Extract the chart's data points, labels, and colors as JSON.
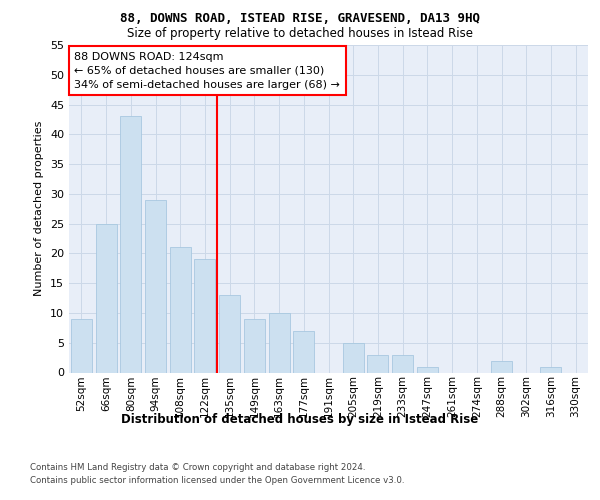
{
  "title": "88, DOWNS ROAD, ISTEAD RISE, GRAVESEND, DA13 9HQ",
  "subtitle": "Size of property relative to detached houses in Istead Rise",
  "xlabel_bottom": "Distribution of detached houses by size in Istead Rise",
  "ylabel": "Number of detached properties",
  "categories": [
    "52sqm",
    "66sqm",
    "80sqm",
    "94sqm",
    "108sqm",
    "122sqm",
    "135sqm",
    "149sqm",
    "163sqm",
    "177sqm",
    "191sqm",
    "205sqm",
    "219sqm",
    "233sqm",
    "247sqm",
    "261sqm",
    "274sqm",
    "288sqm",
    "302sqm",
    "316sqm",
    "330sqm"
  ],
  "values": [
    9,
    25,
    43,
    29,
    21,
    19,
    13,
    9,
    10,
    7,
    0,
    5,
    3,
    3,
    1,
    0,
    0,
    2,
    0,
    1,
    0
  ],
  "bar_color": "#cce0f0",
  "bar_edgecolor": "#a8c8e0",
  "grid_color": "#ccd8e8",
  "background_color": "#e8eef8",
  "marker_index": 5,
  "annotation_lines": [
    "88 DOWNS ROAD: 124sqm",
    "← 65% of detached houses are smaller (130)",
    "34% of semi-detached houses are larger (68) →"
  ],
  "footer1": "Contains HM Land Registry data © Crown copyright and database right 2024.",
  "footer2": "Contains public sector information licensed under the Open Government Licence v3.0.",
  "ylim": [
    0,
    55
  ],
  "yticks": [
    0,
    5,
    10,
    15,
    20,
    25,
    30,
    35,
    40,
    45,
    50,
    55
  ]
}
